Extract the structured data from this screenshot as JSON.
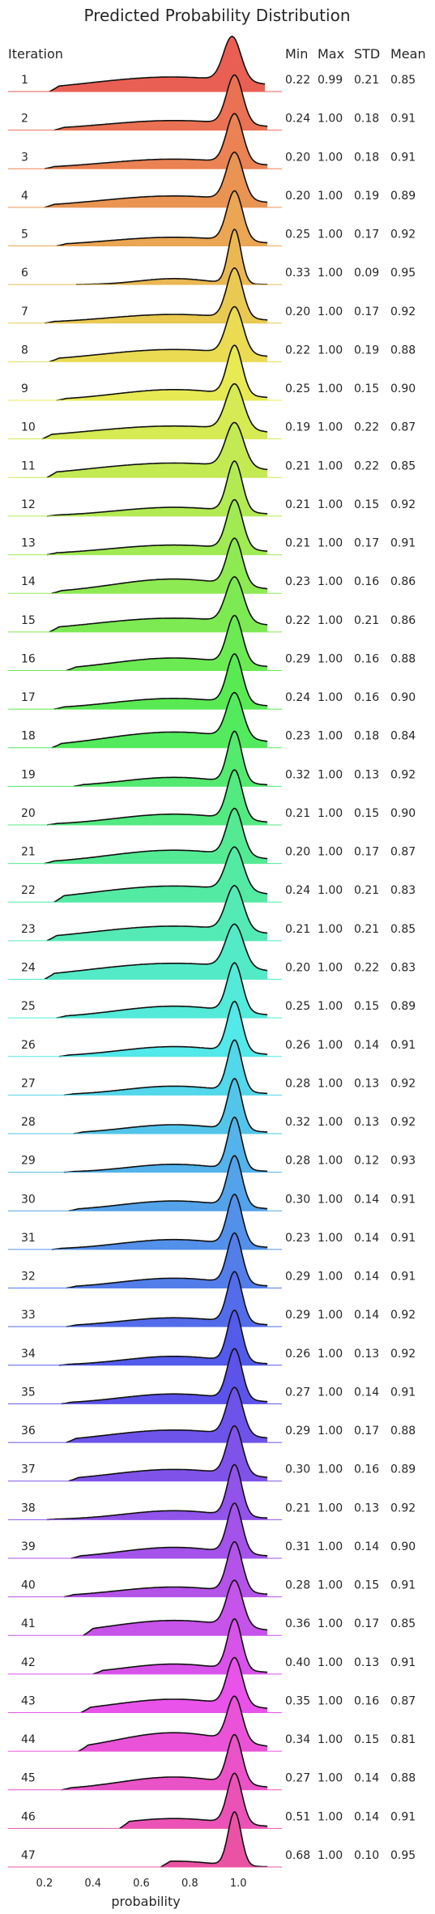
{
  "chart_data": {
    "type": "ridgeline-density",
    "title": "Predicted Probability Distribution",
    "xlabel": "probability",
    "x_ticks": [
      "0.2",
      "0.4",
      "0.6",
      "0.8",
      "1.0"
    ],
    "x_tick_values": [
      0.2,
      0.4,
      0.6,
      0.8,
      1.0
    ],
    "xlim": [
      0.05,
      1.18
    ],
    "row_header": "Iteration",
    "stat_headers": [
      "Min",
      "Max",
      "STD",
      "Mean"
    ],
    "color_scheme": "husl rainbow (red to magenta)",
    "rows": [
      {
        "iteration": "1",
        "min": "0.22",
        "max": "0.99",
        "std": "0.21",
        "mean": "0.85"
      },
      {
        "iteration": "2",
        "min": "0.24",
        "max": "1.00",
        "std": "0.18",
        "mean": "0.91"
      },
      {
        "iteration": "3",
        "min": "0.20",
        "max": "1.00",
        "std": "0.18",
        "mean": "0.91"
      },
      {
        "iteration": "4",
        "min": "0.20",
        "max": "1.00",
        "std": "0.19",
        "mean": "0.89"
      },
      {
        "iteration": "5",
        "min": "0.25",
        "max": "1.00",
        "std": "0.17",
        "mean": "0.92"
      },
      {
        "iteration": "6",
        "min": "0.33",
        "max": "1.00",
        "std": "0.09",
        "mean": "0.95"
      },
      {
        "iteration": "7",
        "min": "0.20",
        "max": "1.00",
        "std": "0.17",
        "mean": "0.92"
      },
      {
        "iteration": "8",
        "min": "0.22",
        "max": "1.00",
        "std": "0.19",
        "mean": "0.88"
      },
      {
        "iteration": "9",
        "min": "0.25",
        "max": "1.00",
        "std": "0.15",
        "mean": "0.90"
      },
      {
        "iteration": "10",
        "min": "0.19",
        "max": "1.00",
        "std": "0.22",
        "mean": "0.87"
      },
      {
        "iteration": "11",
        "min": "0.21",
        "max": "1.00",
        "std": "0.22",
        "mean": "0.85"
      },
      {
        "iteration": "12",
        "min": "0.21",
        "max": "1.00",
        "std": "0.15",
        "mean": "0.92"
      },
      {
        "iteration": "13",
        "min": "0.21",
        "max": "1.00",
        "std": "0.17",
        "mean": "0.91"
      },
      {
        "iteration": "14",
        "min": "0.23",
        "max": "1.00",
        "std": "0.16",
        "mean": "0.86"
      },
      {
        "iteration": "15",
        "min": "0.22",
        "max": "1.00",
        "std": "0.21",
        "mean": "0.86"
      },
      {
        "iteration": "16",
        "min": "0.29",
        "max": "1.00",
        "std": "0.16",
        "mean": "0.88"
      },
      {
        "iteration": "17",
        "min": "0.24",
        "max": "1.00",
        "std": "0.16",
        "mean": "0.90"
      },
      {
        "iteration": "18",
        "min": "0.23",
        "max": "1.00",
        "std": "0.18",
        "mean": "0.84"
      },
      {
        "iteration": "19",
        "min": "0.32",
        "max": "1.00",
        "std": "0.13",
        "mean": "0.92"
      },
      {
        "iteration": "20",
        "min": "0.21",
        "max": "1.00",
        "std": "0.15",
        "mean": "0.90"
      },
      {
        "iteration": "21",
        "min": "0.20",
        "max": "1.00",
        "std": "0.17",
        "mean": "0.87"
      },
      {
        "iteration": "22",
        "min": "0.24",
        "max": "1.00",
        "std": "0.21",
        "mean": "0.83"
      },
      {
        "iteration": "23",
        "min": "0.21",
        "max": "1.00",
        "std": "0.21",
        "mean": "0.85"
      },
      {
        "iteration": "24",
        "min": "0.20",
        "max": "1.00",
        "std": "0.22",
        "mean": "0.83"
      },
      {
        "iteration": "25",
        "min": "0.25",
        "max": "1.00",
        "std": "0.15",
        "mean": "0.89"
      },
      {
        "iteration": "26",
        "min": "0.26",
        "max": "1.00",
        "std": "0.14",
        "mean": "0.91"
      },
      {
        "iteration": "27",
        "min": "0.28",
        "max": "1.00",
        "std": "0.13",
        "mean": "0.92"
      },
      {
        "iteration": "28",
        "min": "0.32",
        "max": "1.00",
        "std": "0.13",
        "mean": "0.92"
      },
      {
        "iteration": "29",
        "min": "0.28",
        "max": "1.00",
        "std": "0.12",
        "mean": "0.93"
      },
      {
        "iteration": "30",
        "min": "0.30",
        "max": "1.00",
        "std": "0.14",
        "mean": "0.91"
      },
      {
        "iteration": "31",
        "min": "0.23",
        "max": "1.00",
        "std": "0.14",
        "mean": "0.91"
      },
      {
        "iteration": "32",
        "min": "0.29",
        "max": "1.00",
        "std": "0.14",
        "mean": "0.91"
      },
      {
        "iteration": "33",
        "min": "0.29",
        "max": "1.00",
        "std": "0.14",
        "mean": "0.92"
      },
      {
        "iteration": "34",
        "min": "0.26",
        "max": "1.00",
        "std": "0.13",
        "mean": "0.92"
      },
      {
        "iteration": "35",
        "min": "0.27",
        "max": "1.00",
        "std": "0.14",
        "mean": "0.91"
      },
      {
        "iteration": "36",
        "min": "0.29",
        "max": "1.00",
        "std": "0.17",
        "mean": "0.88"
      },
      {
        "iteration": "37",
        "min": "0.30",
        "max": "1.00",
        "std": "0.16",
        "mean": "0.89"
      },
      {
        "iteration": "38",
        "min": "0.21",
        "max": "1.00",
        "std": "0.13",
        "mean": "0.92"
      },
      {
        "iteration": "39",
        "min": "0.31",
        "max": "1.00",
        "std": "0.14",
        "mean": "0.90"
      },
      {
        "iteration": "40",
        "min": "0.28",
        "max": "1.00",
        "std": "0.15",
        "mean": "0.91"
      },
      {
        "iteration": "41",
        "min": "0.36",
        "max": "1.00",
        "std": "0.17",
        "mean": "0.85"
      },
      {
        "iteration": "42",
        "min": "0.40",
        "max": "1.00",
        "std": "0.13",
        "mean": "0.91"
      },
      {
        "iteration": "43",
        "min": "0.35",
        "max": "1.00",
        "std": "0.16",
        "mean": "0.87"
      },
      {
        "iteration": "44",
        "min": "0.34",
        "max": "1.00",
        "std": "0.15",
        "mean": "0.81"
      },
      {
        "iteration": "45",
        "min": "0.27",
        "max": "1.00",
        "std": "0.14",
        "mean": "0.88"
      },
      {
        "iteration": "46",
        "min": "0.51",
        "max": "1.00",
        "std": "0.14",
        "mean": "0.91"
      },
      {
        "iteration": "47",
        "min": "0.68",
        "max": "1.00",
        "std": "0.10",
        "mean": "0.95"
      }
    ]
  }
}
